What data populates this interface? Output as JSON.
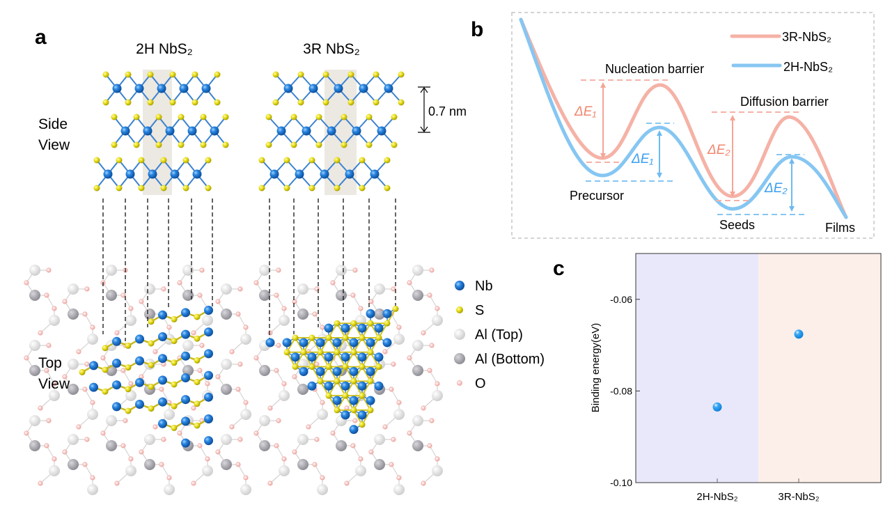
{
  "panel_a": {
    "label": "a",
    "title_2h": "2H NbS₂",
    "title_3r": "3R NbS₂",
    "side_view": [
      "Side",
      "View"
    ],
    "top_view": [
      "Top",
      "View"
    ],
    "spacing_label": "0.7 nm",
    "legend": [
      {
        "label": "Nb",
        "color": "#1f78d1"
      },
      {
        "label": "S",
        "color": "#e6dc1a"
      },
      {
        "label": "Al (Top)",
        "color": "#dedede"
      },
      {
        "label": "Al (Bottom)",
        "color": "#a9a7ae"
      },
      {
        "label": "O",
        "color": "#f2b4b0"
      }
    ]
  },
  "panel_b": {
    "label": "b",
    "legend": [
      {
        "label": "3R-NbS₂",
        "color": "#f5b2a6"
      },
      {
        "label": "2H-NbS₂",
        "color": "#86c6f2"
      }
    ],
    "nucleation_label": "Nucleation barrier",
    "diffusion_label": "Diffusion barrier",
    "precursor_label": "Precursor",
    "seeds_label": "Seeds",
    "films_label": "Films",
    "de1_3r": "ΔE₁",
    "de1_2h": "ΔE₁",
    "de2_3r": "ΔE₂",
    "de2_2h": "ΔE₂",
    "text_pink": "#f2866e",
    "text_blue": "#3a9ff0"
  },
  "chart_data": {
    "type": "scatter",
    "label": "c",
    "categories": [
      "2H-NbS₂",
      "3R-NbS₂"
    ],
    "values": [
      -0.0835,
      -0.0676
    ],
    "ylabel": "Binding energy(eV)",
    "xlabel": "",
    "ylim": [
      -0.1,
      -0.05
    ],
    "yticks": [
      -0.06,
      -0.08,
      -0.1
    ],
    "ytick_labels": [
      "-0.06",
      "-0.08",
      "-0.10"
    ],
    "grid": false,
    "background_colors": [
      "#e9e8fb",
      "#fcefea"
    ],
    "marker_color": "#1d94ee"
  }
}
